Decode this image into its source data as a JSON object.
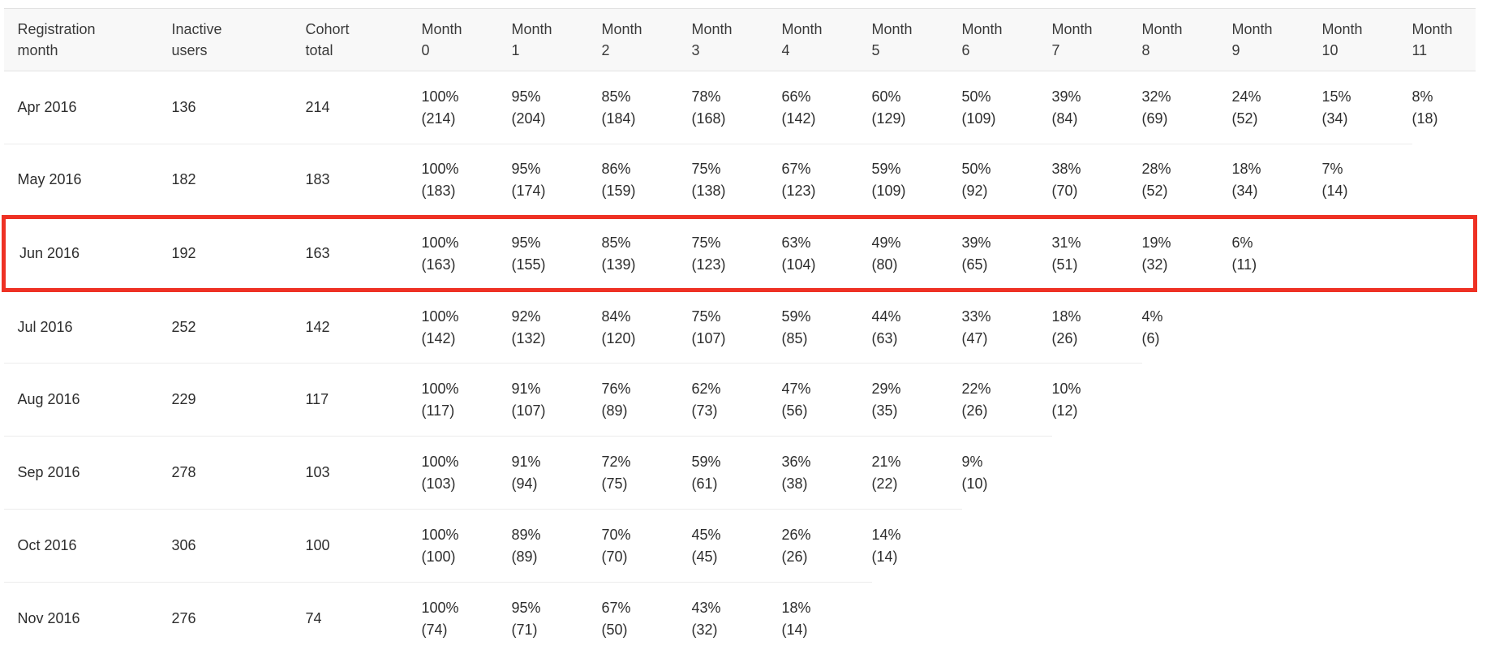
{
  "table": {
    "columns": [
      "Registration\nmonth",
      "Inactive\nusers",
      "Cohort\ntotal",
      "Month\n0",
      "Month\n1",
      "Month\n2",
      "Month\n3",
      "Month\n4",
      "Month\n5",
      "Month\n6",
      "Month\n7",
      "Month\n8",
      "Month\n9",
      "Month\n10",
      "Month\n11"
    ],
    "rows": [
      {
        "registration_month": "Apr 2016",
        "inactive_users": "136",
        "cohort_total": "214",
        "months": [
          {
            "pct": "100%",
            "count": "(214)"
          },
          {
            "pct": "95%",
            "count": "(204)"
          },
          {
            "pct": "85%",
            "count": "(184)"
          },
          {
            "pct": "78%",
            "count": "(168)"
          },
          {
            "pct": "66%",
            "count": "(142)"
          },
          {
            "pct": "60%",
            "count": "(129)"
          },
          {
            "pct": "50%",
            "count": "(109)"
          },
          {
            "pct": "39%",
            "count": "(84)"
          },
          {
            "pct": "32%",
            "count": "(69)"
          },
          {
            "pct": "24%",
            "count": "(52)"
          },
          {
            "pct": "15%",
            "count": "(34)"
          },
          {
            "pct": "8%",
            "count": "(18)"
          }
        ]
      },
      {
        "registration_month": "May 2016",
        "inactive_users": "182",
        "cohort_total": "183",
        "months": [
          {
            "pct": "100%",
            "count": "(183)"
          },
          {
            "pct": "95%",
            "count": "(174)"
          },
          {
            "pct": "86%",
            "count": "(159)"
          },
          {
            "pct": "75%",
            "count": "(138)"
          },
          {
            "pct": "67%",
            "count": "(123)"
          },
          {
            "pct": "59%",
            "count": "(109)"
          },
          {
            "pct": "50%",
            "count": "(92)"
          },
          {
            "pct": "38%",
            "count": "(70)"
          },
          {
            "pct": "28%",
            "count": "(52)"
          },
          {
            "pct": "18%",
            "count": "(34)"
          },
          {
            "pct": "7%",
            "count": "(14)"
          }
        ]
      },
      {
        "registration_month": "Jun 2016",
        "inactive_users": "192",
        "cohort_total": "163",
        "months": [
          {
            "pct": "100%",
            "count": "(163)"
          },
          {
            "pct": "95%",
            "count": "(155)"
          },
          {
            "pct": "85%",
            "count": "(139)"
          },
          {
            "pct": "75%",
            "count": "(123)"
          },
          {
            "pct": "63%",
            "count": "(104)"
          },
          {
            "pct": "49%",
            "count": "(80)"
          },
          {
            "pct": "39%",
            "count": "(65)"
          },
          {
            "pct": "31%",
            "count": "(51)"
          },
          {
            "pct": "19%",
            "count": "(32)"
          },
          {
            "pct": "6%",
            "count": "(11)"
          }
        ]
      },
      {
        "registration_month": "Jul 2016",
        "inactive_users": "252",
        "cohort_total": "142",
        "months": [
          {
            "pct": "100%",
            "count": "(142)"
          },
          {
            "pct": "92%",
            "count": "(132)"
          },
          {
            "pct": "84%",
            "count": "(120)"
          },
          {
            "pct": "75%",
            "count": "(107)"
          },
          {
            "pct": "59%",
            "count": "(85)"
          },
          {
            "pct": "44%",
            "count": "(63)"
          },
          {
            "pct": "33%",
            "count": "(47)"
          },
          {
            "pct": "18%",
            "count": "(26)"
          },
          {
            "pct": "4%",
            "count": "(6)"
          }
        ]
      },
      {
        "registration_month": "Aug 2016",
        "inactive_users": "229",
        "cohort_total": "117",
        "months": [
          {
            "pct": "100%",
            "count": "(117)"
          },
          {
            "pct": "91%",
            "count": "(107)"
          },
          {
            "pct": "76%",
            "count": "(89)"
          },
          {
            "pct": "62%",
            "count": "(73)"
          },
          {
            "pct": "47%",
            "count": "(56)"
          },
          {
            "pct": "29%",
            "count": "(35)"
          },
          {
            "pct": "22%",
            "count": "(26)"
          },
          {
            "pct": "10%",
            "count": "(12)"
          }
        ]
      },
      {
        "registration_month": "Sep 2016",
        "inactive_users": "278",
        "cohort_total": "103",
        "months": [
          {
            "pct": "100%",
            "count": "(103)"
          },
          {
            "pct": "91%",
            "count": "(94)"
          },
          {
            "pct": "72%",
            "count": "(75)"
          },
          {
            "pct": "59%",
            "count": "(61)"
          },
          {
            "pct": "36%",
            "count": "(38)"
          },
          {
            "pct": "21%",
            "count": "(22)"
          },
          {
            "pct": "9%",
            "count": "(10)"
          }
        ]
      },
      {
        "registration_month": "Oct 2016",
        "inactive_users": "306",
        "cohort_total": "100",
        "months": [
          {
            "pct": "100%",
            "count": "(100)"
          },
          {
            "pct": "89%",
            "count": "(89)"
          },
          {
            "pct": "70%",
            "count": "(70)"
          },
          {
            "pct": "45%",
            "count": "(45)"
          },
          {
            "pct": "26%",
            "count": "(26)"
          },
          {
            "pct": "14%",
            "count": "(14)"
          }
        ]
      },
      {
        "registration_month": "Nov 2016",
        "inactive_users": "276",
        "cohort_total": "74",
        "months": [
          {
            "pct": "100%",
            "count": "(74)"
          },
          {
            "pct": "95%",
            "count": "(71)"
          },
          {
            "pct": "67%",
            "count": "(50)"
          },
          {
            "pct": "43%",
            "count": "(32)"
          },
          {
            "pct": "18%",
            "count": "(14)"
          }
        ]
      }
    ]
  },
  "highlight": {
    "row": "Jun 2016",
    "color": "#ee3124"
  }
}
